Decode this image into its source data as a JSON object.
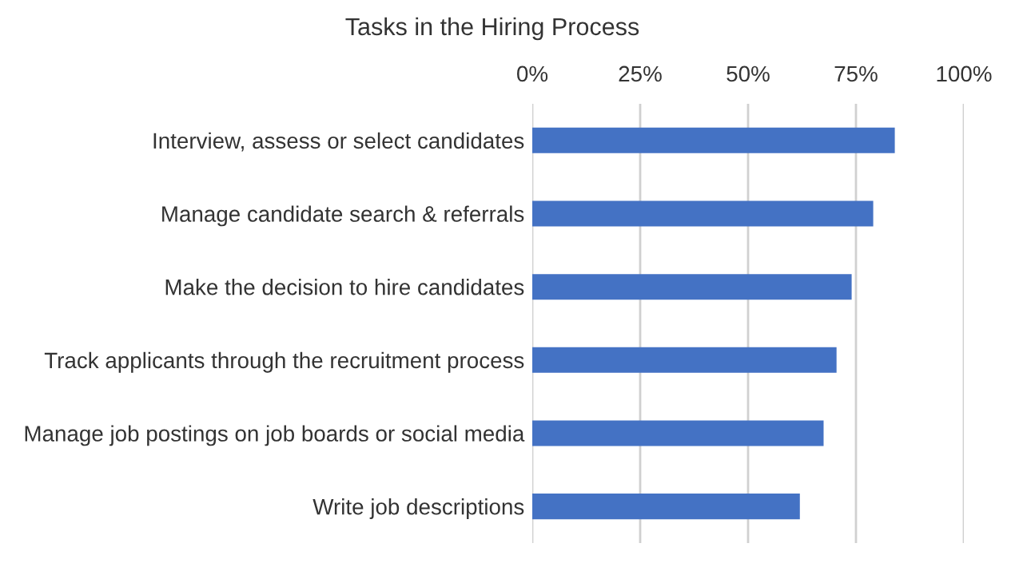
{
  "chart_data": {
    "type": "bar",
    "orientation": "horizontal",
    "title": "Tasks in the Hiring Process",
    "categories": [
      "Interview, assess or select candidates",
      "Manage candidate search & referrals",
      "Make the decision to hire candidates",
      "Track applicants through the recruitment process",
      "Manage job postings on job boards or social media",
      "Write job descriptions"
    ],
    "values": [
      84,
      79,
      74,
      70.5,
      67.5,
      62
    ],
    "color": "#4472c4",
    "xlim": [
      0,
      100
    ],
    "xticks": [
      {
        "value": 0,
        "label": "0%"
      },
      {
        "value": 25,
        "label": "25%"
      },
      {
        "value": 50,
        "label": "50%"
      },
      {
        "value": 75,
        "label": "75%"
      },
      {
        "value": 100,
        "label": "100%"
      }
    ],
    "grid": "x"
  }
}
